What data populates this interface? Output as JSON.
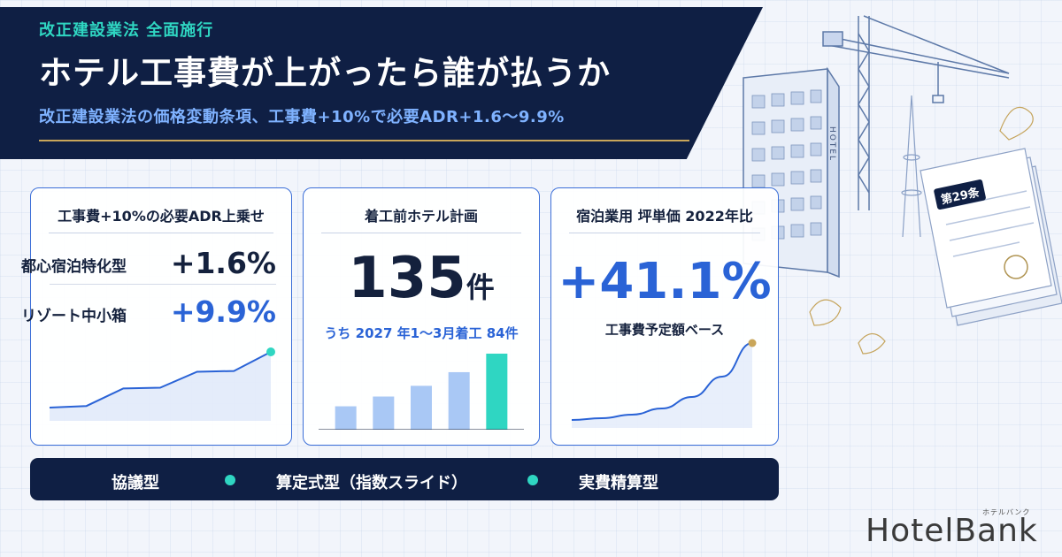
{
  "header": {
    "kicker": "改正建設業法 全面施行",
    "title": "ホテル工事費が上がったら誰が払うか",
    "subtitle": "改正建設業法の価格変動条項、工事費+10%で必要ADR+1.6〜9.9%"
  },
  "illustration": {
    "hotel_sign": "HOTEL",
    "document_label": "第29条"
  },
  "card1": {
    "title": "工事費+10%の必要ADR上乗せ",
    "rows": [
      {
        "label": "都心宿泊特化型",
        "value": "+1.6%"
      },
      {
        "label": "リゾート中小箱",
        "value": "+9.9%"
      }
    ]
  },
  "card2": {
    "title": "着工前ホテル計画",
    "number": "135",
    "unit": "件",
    "note": "うち 2027 年1〜3月着工 84件"
  },
  "card3": {
    "title": "宿泊業用 坪単価 2022年比",
    "value": "+41.1%",
    "note": "工事費予定額ベース"
  },
  "contract_types": [
    "協議型",
    "算定式型（指数スライド）",
    "実費精算型"
  ],
  "logo": {
    "name": "HotelBank",
    "ruby": "ホテルバンク"
  },
  "colors": {
    "navy": "#0f1f44",
    "accent_blue": "#2a63d6",
    "teal": "#2fd6c2",
    "gold": "#c9a65a",
    "light_bar": "#a9c8f5"
  },
  "chart_data": [
    {
      "type": "line",
      "y": [
        1,
        1.2,
        3.4,
        3.5,
        5.5,
        5.6,
        8
      ],
      "highlight": "last",
      "area": true
    },
    {
      "type": "bar",
      "values": [
        2.4,
        3.4,
        4.5,
        5.9,
        7.8
      ],
      "highlight_index": 4
    },
    {
      "type": "line",
      "curve": "exponential",
      "y": [
        0.3,
        0.5,
        0.9,
        1.6,
        2.9,
        5.2,
        9
      ],
      "area": true,
      "end_marker": true
    }
  ]
}
